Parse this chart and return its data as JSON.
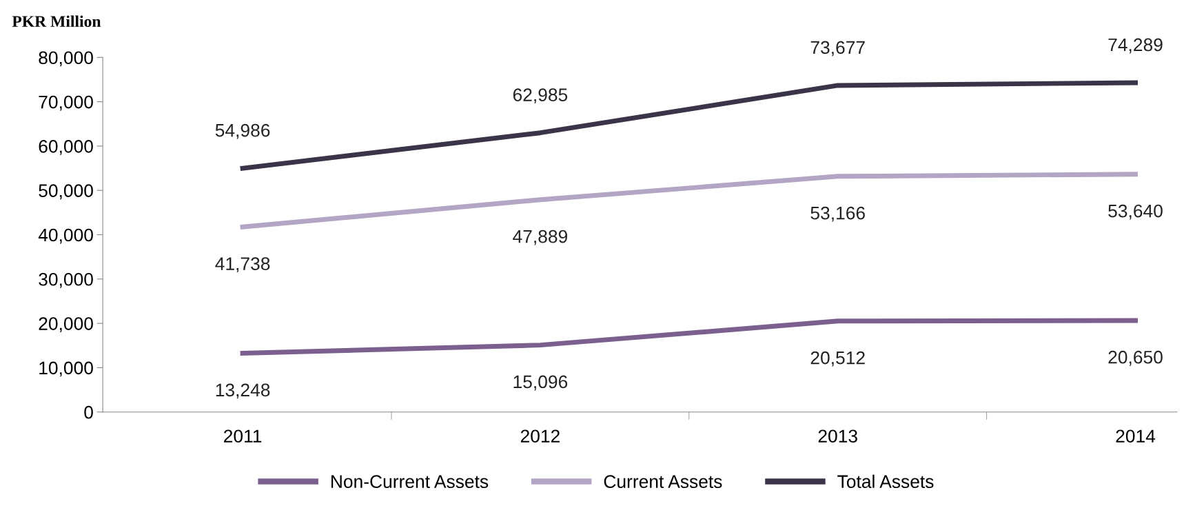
{
  "chart_data": {
    "type": "line",
    "ylabel": "PKR Million",
    "categories": [
      "2011",
      "2012",
      "2013",
      "2014"
    ],
    "series": [
      {
        "name": "Non-Current Assets",
        "color": "#7b5f8e",
        "values": [
          13248,
          15096,
          20512,
          20650
        ],
        "value_labels": [
          "13,248",
          "15,096",
          "20,512",
          "20,650"
        ]
      },
      {
        "name": "Current Assets",
        "color": "#b3a6c4",
        "values": [
          41738,
          47889,
          53166,
          53640
        ],
        "value_labels": [
          "41,738",
          "47,889",
          "53,166",
          "53,640"
        ]
      },
      {
        "name": "Total Assets",
        "color": "#3b3347",
        "values": [
          54986,
          62985,
          73677,
          74289
        ],
        "value_labels": [
          "54,986",
          "62,985",
          "73,677",
          "74,289"
        ]
      }
    ],
    "ylim": [
      0,
      80000
    ],
    "yticks": [
      {
        "value": 0,
        "label": "0"
      },
      {
        "value": 10000,
        "label": "10,000"
      },
      {
        "value": 20000,
        "label": "20,000"
      },
      {
        "value": 30000,
        "label": "30,000"
      },
      {
        "value": 40000,
        "label": "40,000"
      },
      {
        "value": 50000,
        "label": "50,000"
      },
      {
        "value": 60000,
        "label": "60,000"
      },
      {
        "value": 70000,
        "label": "70,000"
      },
      {
        "value": 80000,
        "label": "80,000"
      }
    ],
    "legend": "bottom",
    "grid": false,
    "marker": "none",
    "line_style": "solid"
  }
}
